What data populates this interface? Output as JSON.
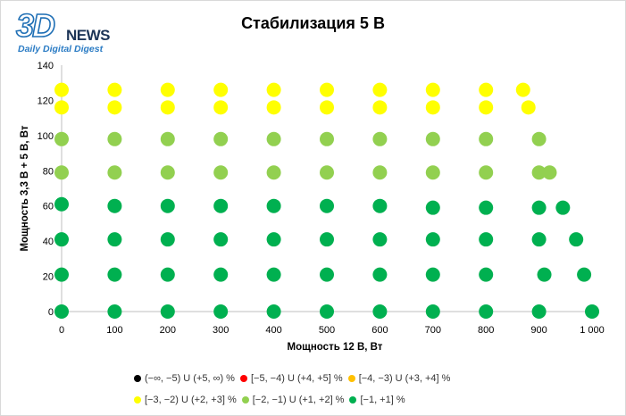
{
  "logo": {
    "big": "3D",
    "news": "NEWS",
    "tagline": "Daily Digital Digest"
  },
  "chart_data": {
    "type": "scatter",
    "title": "Стабилизация 5 В",
    "xlabel": "Мощность  12 В, Вт",
    "ylabel": "Мощность  3,3 В + 5 В, Вт",
    "xlim": [
      0,
      1000
    ],
    "ylim": [
      0,
      140
    ],
    "x_ticks": [
      0,
      100,
      200,
      300,
      400,
      500,
      600,
      700,
      800,
      900,
      1000
    ],
    "x_tick_labels": [
      "0",
      "100",
      "200",
      "300",
      "400",
      "500",
      "600",
      "700",
      "800",
      "900",
      "1 000"
    ],
    "y_ticks": [
      0,
      20,
      40,
      60,
      80,
      100,
      120,
      140
    ],
    "y_tick_labels": [
      "0",
      "20",
      "40",
      "60",
      "80",
      "100",
      "120",
      "140"
    ],
    "grid": false,
    "legend_position": "bottom",
    "legend": [
      {
        "label": "(−∞, −5) U (+5, ∞) %",
        "color": "#000000"
      },
      {
        "label": "[−5, −4) U (+4, +5] %",
        "color": "#ff0000"
      },
      {
        "label": "[−4, −3) U (+3, +4] %",
        "color": "#ffc000"
      },
      {
        "label": "[−3, −2) U (+2, +3] %",
        "color": "#ffff00"
      },
      {
        "label": "[−2, −1) U (+1, +2] %",
        "color": "#92d050"
      },
      {
        "label": "[−1, +1] %",
        "color": "#00b050"
      }
    ],
    "series": [
      {
        "name": "[−3, −2) U (+2, +3] %",
        "color": "#ffff00",
        "points": [
          [
            0,
            126
          ],
          [
            100,
            126
          ],
          [
            200,
            126
          ],
          [
            300,
            126
          ],
          [
            400,
            126
          ],
          [
            500,
            126
          ],
          [
            600,
            126
          ],
          [
            700,
            126
          ],
          [
            800,
            126
          ],
          [
            870,
            126
          ],
          [
            0,
            116
          ],
          [
            100,
            116
          ],
          [
            200,
            116
          ],
          [
            300,
            116
          ],
          [
            400,
            116
          ],
          [
            500,
            116
          ],
          [
            600,
            116
          ],
          [
            700,
            116
          ],
          [
            800,
            116
          ],
          [
            880,
            116
          ]
        ]
      },
      {
        "name": "[−2, −1) U (+1, +2] %",
        "color": "#92d050",
        "points": [
          [
            0,
            98
          ],
          [
            100,
            98
          ],
          [
            200,
            98
          ],
          [
            300,
            98
          ],
          [
            400,
            98
          ],
          [
            500,
            98
          ],
          [
            600,
            98
          ],
          [
            700,
            98
          ],
          [
            800,
            98
          ],
          [
            900,
            98
          ],
          [
            0,
            79
          ],
          [
            100,
            79
          ],
          [
            200,
            79
          ],
          [
            300,
            79
          ],
          [
            400,
            79
          ],
          [
            500,
            79
          ],
          [
            600,
            79
          ],
          [
            700,
            79
          ],
          [
            800,
            79
          ],
          [
            900,
            79
          ],
          [
            920,
            79
          ]
        ]
      },
      {
        "name": "[−1, +1] %",
        "color": "#00b050",
        "points": [
          [
            0,
            61
          ],
          [
            100,
            60
          ],
          [
            200,
            60
          ],
          [
            300,
            60
          ],
          [
            400,
            60
          ],
          [
            500,
            60
          ],
          [
            600,
            60
          ],
          [
            700,
            59
          ],
          [
            800,
            59
          ],
          [
            900,
            59
          ],
          [
            945,
            59
          ],
          [
            0,
            41
          ],
          [
            100,
            41
          ],
          [
            200,
            41
          ],
          [
            300,
            41
          ],
          [
            400,
            41
          ],
          [
            500,
            41
          ],
          [
            600,
            41
          ],
          [
            700,
            41
          ],
          [
            800,
            41
          ],
          [
            900,
            41
          ],
          [
            970,
            41
          ],
          [
            0,
            21
          ],
          [
            100,
            21
          ],
          [
            200,
            21
          ],
          [
            300,
            21
          ],
          [
            400,
            21
          ],
          [
            500,
            21
          ],
          [
            600,
            21
          ],
          [
            700,
            21
          ],
          [
            800,
            21
          ],
          [
            910,
            21
          ],
          [
            985,
            21
          ],
          [
            0,
            0
          ],
          [
            100,
            0
          ],
          [
            200,
            0
          ],
          [
            300,
            0
          ],
          [
            400,
            0
          ],
          [
            500,
            0
          ],
          [
            600,
            0
          ],
          [
            700,
            0
          ],
          [
            800,
            0
          ],
          [
            900,
            0
          ],
          [
            1000,
            0
          ]
        ]
      }
    ]
  }
}
